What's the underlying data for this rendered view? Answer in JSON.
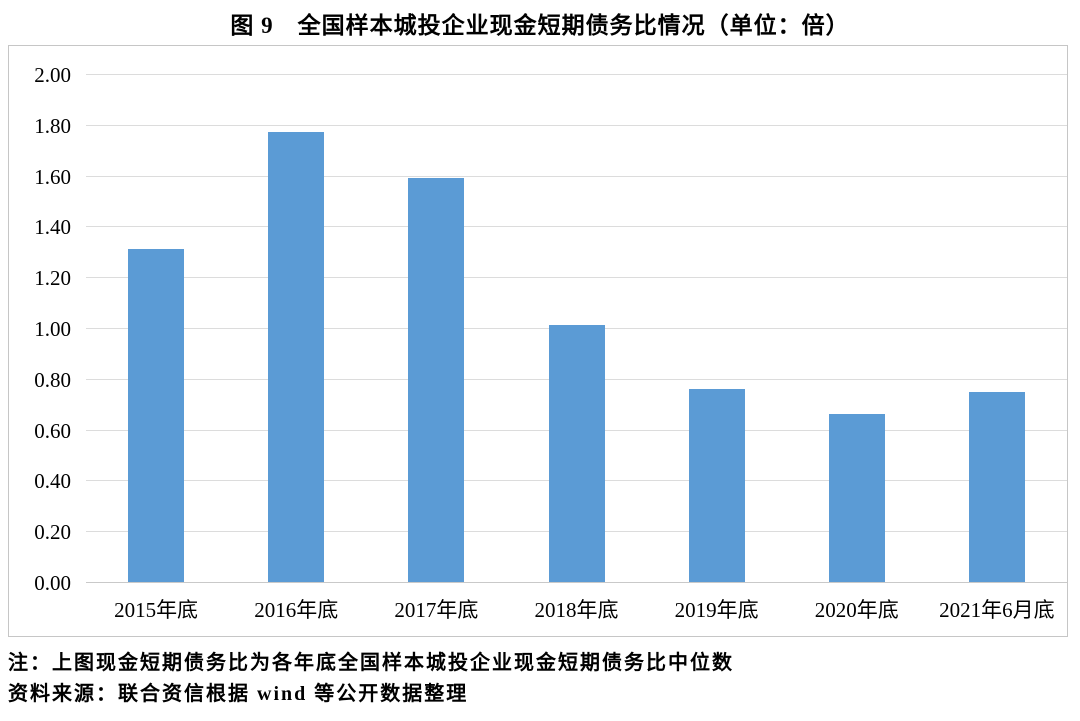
{
  "title": "图 9　全国样本城投企业现金短期债务比情况（单位：倍）",
  "notes": {
    "line1": "注：上图现金短期债务比为各年底全国样本城投企业现金短期债务比中位数",
    "line2": "资料来源：联合资信根据 wind 等公开数据整理"
  },
  "colors": {
    "bar": "#5B9BD5",
    "gridline": "#dcdcdc",
    "axis_line": "#c9c9c9",
    "frame_border": "#c6c6c6",
    "text": "#000000",
    "background": "#ffffff"
  },
  "chart_data": {
    "type": "bar",
    "title": "图 9　全国样本城投企业现金短期债务比情况（单位：倍）",
    "categories": [
      "2015年底",
      "2016年底",
      "2017年底",
      "2018年底",
      "2019年底",
      "2020年底",
      "2021年6月底"
    ],
    "values": [
      1.31,
      1.77,
      1.59,
      1.01,
      0.76,
      0.66,
      0.75
    ],
    "series_name": "现金短期债务比中位数",
    "xlabel": "",
    "ylabel": "",
    "unit": "倍",
    "ylim": [
      0,
      2.0
    ],
    "ytick_step": 0.2,
    "ytick_labels": [
      "0.00",
      "0.20",
      "0.40",
      "0.60",
      "0.80",
      "1.00",
      "1.20",
      "1.40",
      "1.60",
      "1.80",
      "2.00"
    ],
    "grid": true,
    "legend": "none",
    "bar_color": "#5B9BD5"
  }
}
